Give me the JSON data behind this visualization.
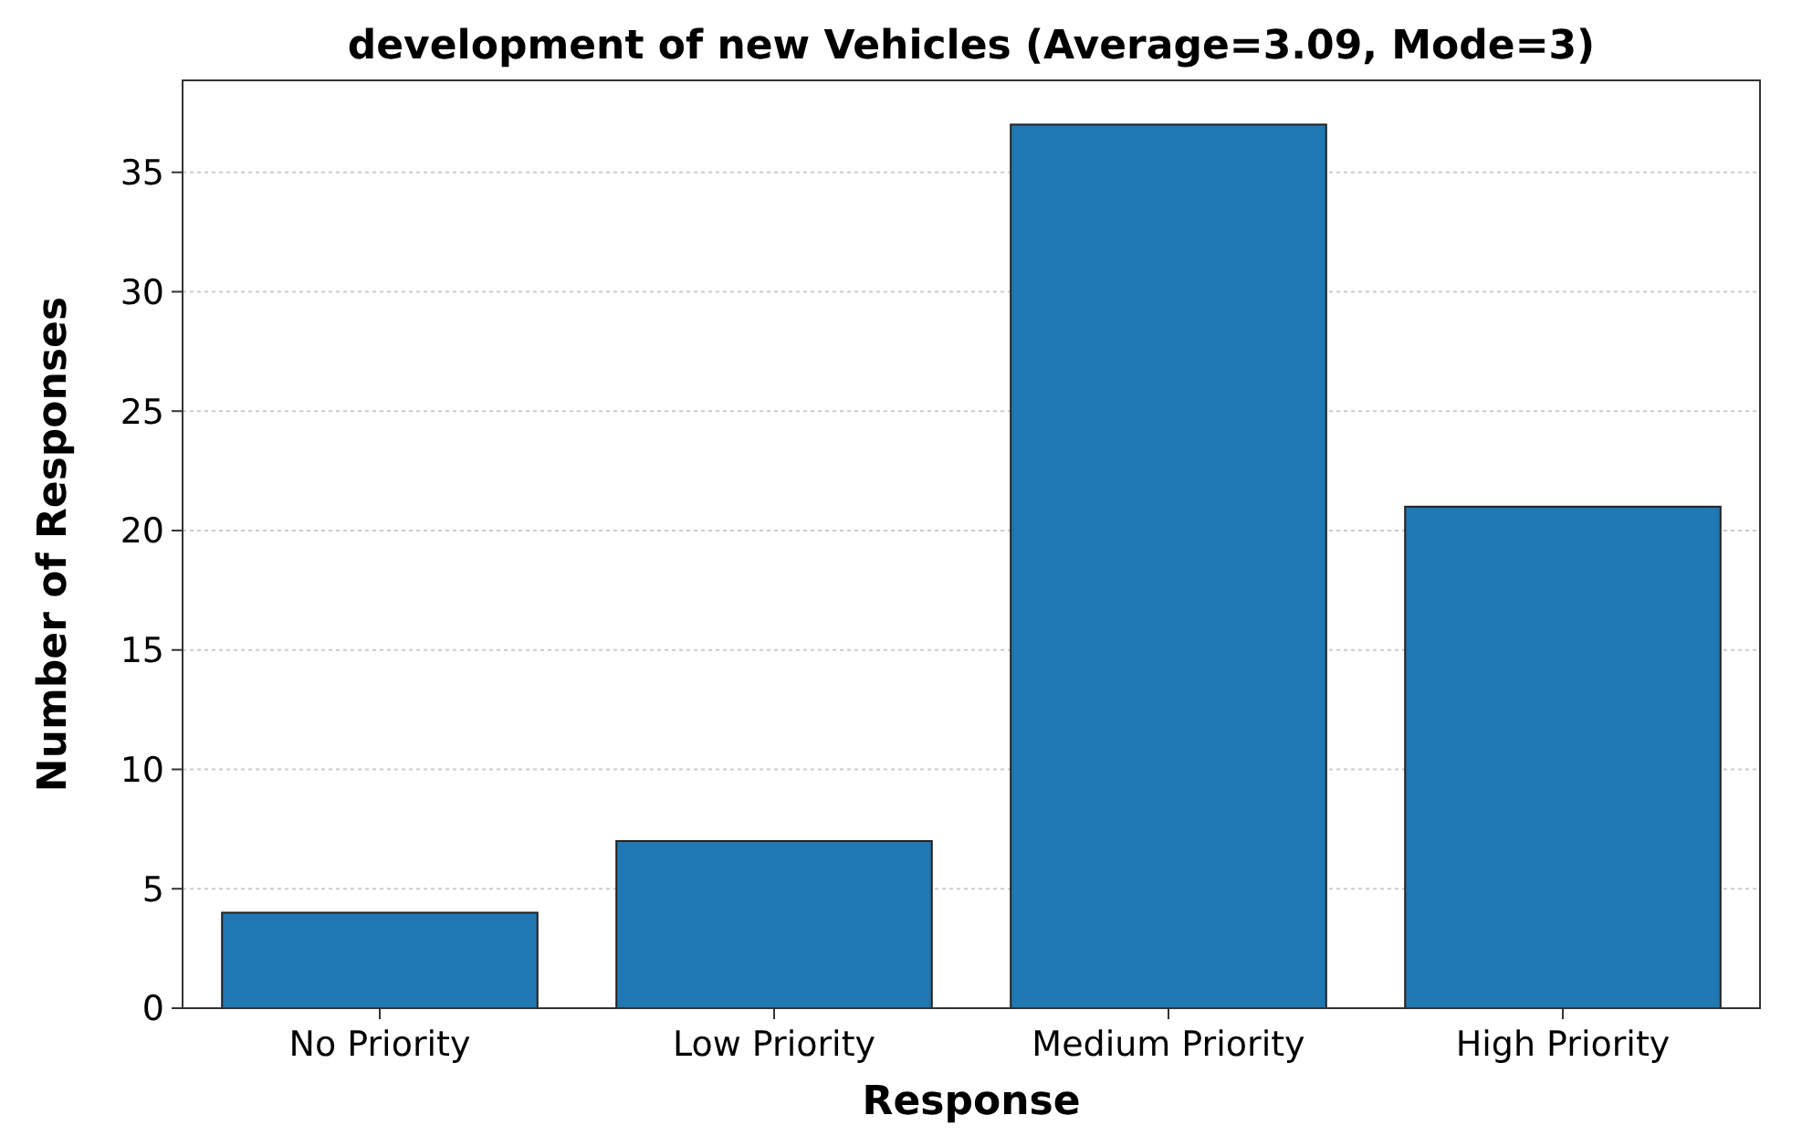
{
  "chart_data": {
    "type": "bar",
    "title": "development of new Vehicles (Average=3.09, Mode=3)",
    "xlabel": "Response",
    "ylabel": "Number of Responses",
    "categories": [
      "No Priority",
      "Low Priority",
      "Medium Priority",
      "High Priority"
    ],
    "values": [
      4,
      7,
      37,
      21
    ],
    "color": "#1f77b4",
    "ylim": [
      0,
      38.85
    ],
    "yticks": [
      0,
      5,
      10,
      15,
      20,
      25,
      30,
      35
    ],
    "grid": "y"
  }
}
